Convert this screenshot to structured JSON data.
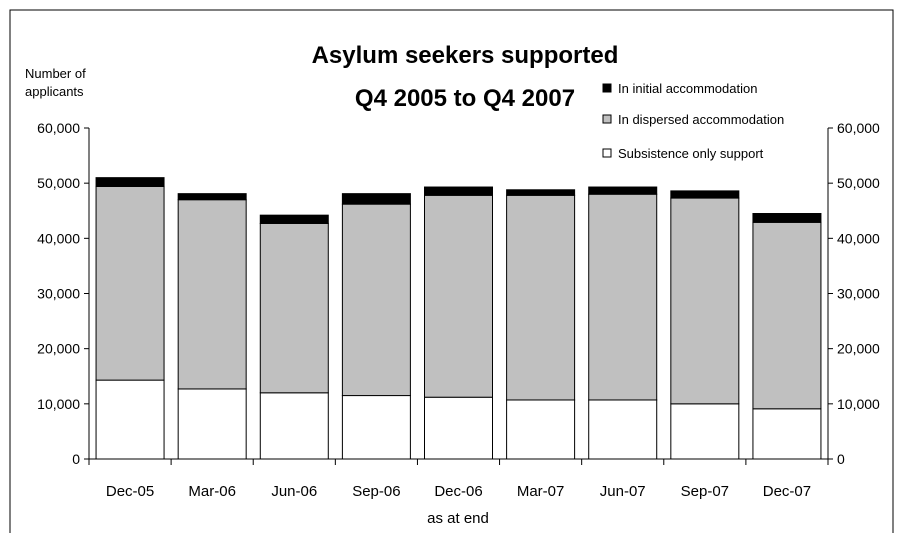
{
  "chart_data": {
    "type": "bar",
    "stacked": true,
    "title": [
      "Asylum seekers supported",
      "Q4 2005 to Q4 2007"
    ],
    "ylabel": [
      "Number of",
      "applicants"
    ],
    "xlabel": "as at end",
    "ylim": [
      0,
      60000
    ],
    "yticks": [
      "0",
      "10,000",
      "20,000",
      "30,000",
      "40,000",
      "50,000",
      "60,000"
    ],
    "ytick_values": [
      0,
      10000,
      20000,
      30000,
      40000,
      50000,
      60000
    ],
    "y2ticks": [
      "0",
      "10,000",
      "20,000",
      "30,000",
      "40,000",
      "50,000",
      "60,000"
    ],
    "categories": [
      "Dec-05",
      "Mar-06",
      "Jun-06",
      "Sep-06",
      "Dec-06",
      "Mar-07",
      "Jun-07",
      "Sep-07",
      "Dec-07"
    ],
    "series": [
      {
        "name": "Subsistence only support",
        "color": "#ffffff",
        "values": [
          14300,
          12700,
          12000,
          11500,
          11200,
          10700,
          10700,
          10000,
          9100
        ]
      },
      {
        "name": "In dispersed accommodation",
        "color": "#c0c0c0",
        "values": [
          35100,
          34300,
          30700,
          34700,
          36600,
          37100,
          37300,
          37300,
          33800
        ]
      },
      {
        "name": "In initial accommodation",
        "color": "#000000",
        "values": [
          1600,
          1100,
          1500,
          1900,
          1500,
          1000,
          1300,
          1300,
          1600
        ]
      }
    ],
    "legend_order": [
      2,
      1,
      0
    ],
    "legend_position": "top-right",
    "grid": false
  }
}
